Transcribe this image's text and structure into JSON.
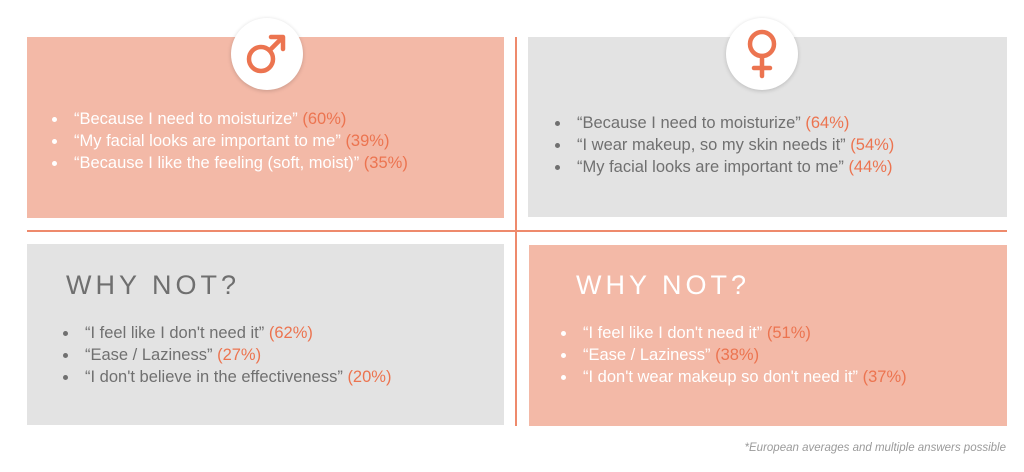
{
  "colors": {
    "salmon": "#f3b9a7",
    "grey": "#e3e3e3",
    "accent": "#ec7450",
    "divider": "#ee8a6c"
  },
  "male": {
    "icon": "male-symbol-icon",
    "reasons": [
      {
        "text": "“Because I need to moisturize”",
        "pct": "(60%)"
      },
      {
        "text": "“My facial looks are important to me”",
        "pct": "(39%)"
      },
      {
        "text": "“Because I like the feeling (soft, moist)”",
        "pct": "(35%)"
      }
    ],
    "why_not_title": "WHY NOT?",
    "why_not": [
      {
        "text": "“I feel like I don't need it”",
        "pct": "(62%)"
      },
      {
        "text": "“Ease / Laziness”",
        "pct": "(27%)"
      },
      {
        "text": "“I don't believe in the effectiveness”",
        "pct": "(20%)"
      }
    ]
  },
  "female": {
    "icon": "female-symbol-icon",
    "reasons": [
      {
        "text": "“Because I need to moisturize”",
        "pct": "(64%)"
      },
      {
        "text": "“I wear makeup, so my skin needs it”",
        "pct": "(54%)"
      },
      {
        "text": "“My facial looks are important to me”",
        "pct": "(44%)"
      }
    ],
    "why_not_title": "WHY NOT?",
    "why_not": [
      {
        "text": "“I feel like I don't need it”",
        "pct": "(51%)"
      },
      {
        "text": "“Ease / Laziness”",
        "pct": "(38%)"
      },
      {
        "text": "“I don't wear makeup so don't need it”",
        "pct": "(37%)"
      }
    ]
  },
  "footnote": "*European averages and multiple answers possible"
}
